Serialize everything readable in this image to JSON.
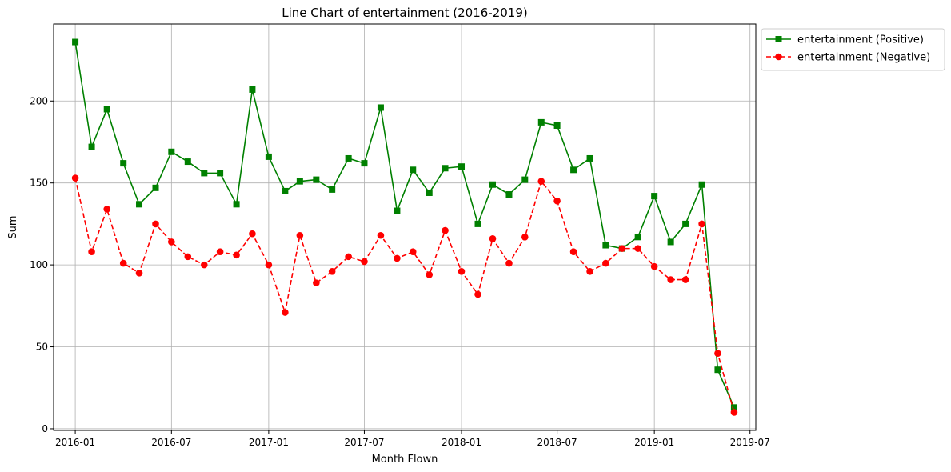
{
  "chart_data": {
    "type": "line",
    "title": "Line Chart of entertainment (2016-2019)",
    "xlabel": "Month Flown",
    "ylabel": "Sum",
    "xlim": [
      "2015-11-21",
      "2019-07-12"
    ],
    "ylim": [
      -1,
      247
    ],
    "x_ticks": [
      {
        "value": "2016-01-01",
        "label": "2016-01"
      },
      {
        "value": "2016-07-01",
        "label": "2016-07"
      },
      {
        "value": "2017-01-01",
        "label": "2017-01"
      },
      {
        "value": "2017-07-01",
        "label": "2017-07"
      },
      {
        "value": "2018-01-01",
        "label": "2018-01"
      },
      {
        "value": "2018-07-01",
        "label": "2018-07"
      },
      {
        "value": "2019-01-01",
        "label": "2019-01"
      },
      {
        "value": "2019-07-01",
        "label": "2019-07"
      }
    ],
    "y_ticks": [
      0,
      50,
      100,
      150,
      200
    ],
    "grid": true,
    "legend_position": "outside-top-right",
    "x": [
      "2016-01-01",
      "2016-02-01",
      "2016-03-01",
      "2016-04-01",
      "2016-05-01",
      "2016-06-01",
      "2016-07-01",
      "2016-08-01",
      "2016-09-01",
      "2016-10-01",
      "2016-11-01",
      "2016-12-01",
      "2017-01-01",
      "2017-02-01",
      "2017-03-01",
      "2017-04-01",
      "2017-05-01",
      "2017-06-01",
      "2017-07-01",
      "2017-08-01",
      "2017-09-01",
      "2017-10-01",
      "2017-11-01",
      "2017-12-01",
      "2018-01-01",
      "2018-02-01",
      "2018-03-01",
      "2018-04-01",
      "2018-05-01",
      "2018-06-01",
      "2018-07-01",
      "2018-08-01",
      "2018-09-01",
      "2018-10-01",
      "2018-11-01",
      "2018-12-01",
      "2019-01-01",
      "2019-02-01",
      "2019-03-01",
      "2019-04-01",
      "2019-05-01",
      "2019-06-01"
    ],
    "series": [
      {
        "name": "entertainment (Positive)",
        "color": "#008000",
        "marker": "square",
        "line_style": "solid",
        "values": [
          236,
          172,
          195,
          162,
          137,
          147,
          169,
          163,
          156,
          156,
          137,
          207,
          166,
          145,
          151,
          152,
          146,
          165,
          162,
          196,
          133,
          158,
          144,
          159,
          160,
          125,
          149,
          143,
          152,
          187,
          185,
          158,
          165,
          112,
          110,
          117,
          142,
          114,
          125,
          149,
          36,
          13
        ]
      },
      {
        "name": "entertainment (Negative)",
        "color": "#ff0000",
        "marker": "circle",
        "line_style": "dashed",
        "values": [
          153,
          108,
          134,
          101,
          95,
          125,
          114,
          105,
          100,
          108,
          106,
          119,
          100,
          71,
          118,
          89,
          96,
          105,
          102,
          118,
          104,
          108,
          94,
          121,
          96,
          82,
          116,
          101,
          117,
          151,
          139,
          108,
          96,
          101,
          110,
          110,
          99,
          91,
          91,
          125,
          46,
          10
        ]
      }
    ]
  }
}
